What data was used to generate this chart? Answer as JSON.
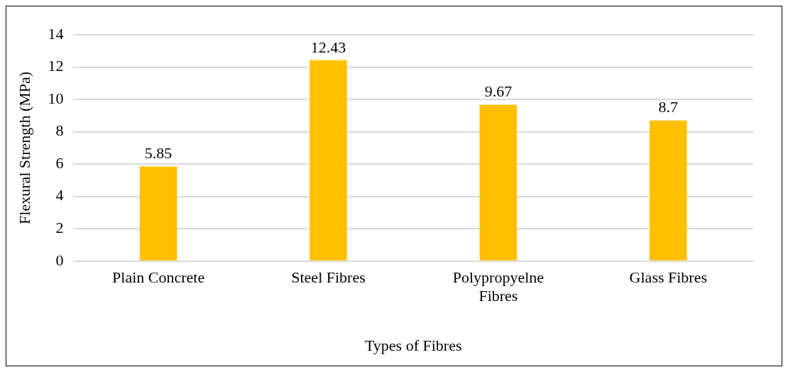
{
  "chart_data": {
    "type": "bar",
    "xlabel": "Types of Fibres",
    "ylabel": "Flexural Strength (MPa)",
    "categories": [
      "Plain Concrete",
      "Steel Fibres",
      "Polypropyelne Fibres",
      "Glass Fibres"
    ],
    "values": [
      5.85,
      12.43,
      9.67,
      8.7
    ],
    "color": "#ffc000",
    "ylim": [
      0,
      14
    ],
    "yticks": [
      0,
      2,
      4,
      6,
      8,
      10,
      12,
      14
    ],
    "grid": "y",
    "data_labels": true
  }
}
